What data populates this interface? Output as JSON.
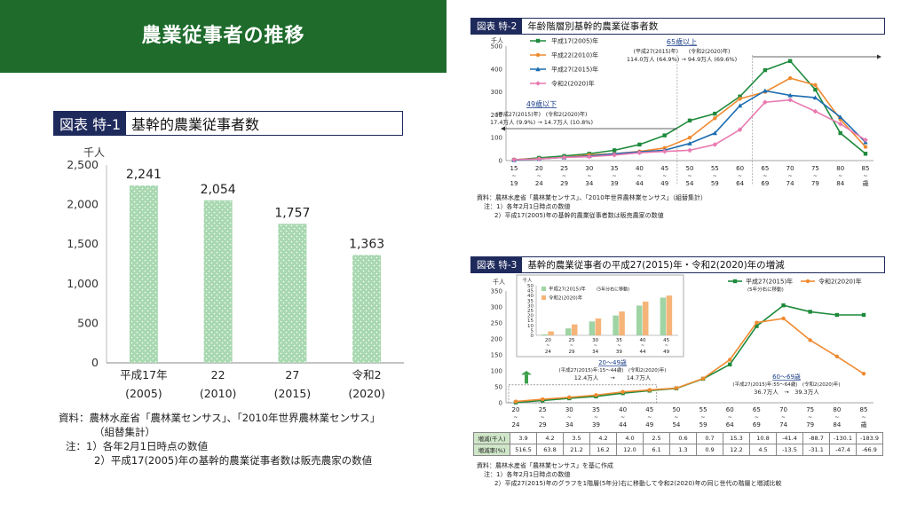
{
  "page_title": "農業従事者の推移",
  "fig1": {
    "tag": "図表 特-1",
    "title": "基幹的農業従事者数",
    "unit": "千人",
    "source_lines": [
      "資料：農林水産省「農林業センサス」、「2010年世界農林業センサス」",
      "（組替集計）",
      "注：1）各年2月1日時点の数値",
      "2）平成17(2005)年の基幹的農業従事者数は販売農家の数値"
    ]
  },
  "fig2": {
    "tag": "図表 特-2",
    "title": "年齢階層別基幹的農業従事者数",
    "unit": "千人",
    "ann_over65_title": "65歳以上",
    "ann_over65_labels": "(平成27(2015)年)　　(令和2(2020)年)",
    "ann_over65_values": "114.0万人 (64.9%) → 94.9万人 (69.6%)",
    "ann_under49_title": "49歳以下",
    "ann_under49_labels": "(平成27(2015)年)　(令和2(2020)年)",
    "ann_under49_values": "17.4万人 (9.9%) → 14.7万人 (10.8%)",
    "source_lines": [
      "資料：農林水産省「農林業センサス」、「2010年世界農林業センサス」（組替集計）",
      "注：1）各年2月1日時点の数値",
      "2）平成17(2005)年の基幹的農業従事者数は販売農家の数値"
    ]
  },
  "fig3": {
    "tag": "図表 特-3",
    "title": "基幹的農業従事者の平成27(2015)年・令和2(2020)年の増減",
    "unit": "千人",
    "inset_unit": "千人",
    "ann_2049_title": "20～49歳",
    "ann_2049_labels": "(平成27(2015)年:15～44歳)　(令和2(2020)年)",
    "ann_2049_values": "12.4万人　　→　　14.7万人",
    "ann_6069_title": "60～69歳",
    "ann_6069_labels": "(平成27(2015)年:55～64歳)　(令和2(2020)年)",
    "ann_6069_values": "36.7万人　→　39.3万人",
    "table_row_labels": [
      "増減(千人)",
      "増減率(%)"
    ],
    "table_change": [
      "3.9",
      "4.2",
      "3.5",
      "4.2",
      "4.0",
      "2.5",
      "0.6",
      "0.7",
      "15.3",
      "10.8",
      "-41.4",
      "-88.7",
      "-130.1",
      "-183.9"
    ],
    "table_rate": [
      "516.5",
      "63.8",
      "21.2",
      "16.2",
      "12.0",
      "6.1",
      "1.3",
      "0.9",
      "12.2",
      "4.5",
      "-13.5",
      "-31.1",
      "-47.4",
      "-66.9"
    ],
    "source_lines": [
      "資料：農林水産省「農林業センサス」を基に作成",
      "注：1）各年2月1日時点の数値",
      "2）平成27(2015)年のグラフを1階層(5年分)右に移動して令和2(2020)年の同じ世代の階層と増減比較"
    ]
  },
  "chart_data": [
    {
      "id": "fig1",
      "type": "bar",
      "categories": [
        "平成17年",
        "22",
        "27",
        "令和2"
      ],
      "categories_sub": [
        "(2005)",
        "(2010)",
        "(2015)",
        "(2020)"
      ],
      "values": [
        2241,
        2054,
        1757,
        1363
      ],
      "value_labels": [
        "2,241",
        "2,054",
        "1,757",
        "1,363"
      ],
      "ylabel": "千人",
      "ylim": [
        0,
        2500
      ],
      "yticks": [
        0,
        500,
        1000,
        1500,
        2000,
        2500
      ],
      "ytick_labels": [
        "0",
        "500",
        "1,000",
        "1,500",
        "2,000",
        "2,500"
      ],
      "bar_color": "#a8d8b0"
    },
    {
      "id": "fig2",
      "type": "line",
      "x_top": [
        "15",
        "20",
        "25",
        "30",
        "35",
        "40",
        "45",
        "50",
        "55",
        "60",
        "65",
        "70",
        "75",
        "80",
        "85"
      ],
      "x_bottom": [
        "19",
        "24",
        "29",
        "34",
        "39",
        "44",
        "49",
        "54",
        "59",
        "64",
        "69",
        "74",
        "79",
        "84",
        "歳"
      ],
      "ylabel": "千人",
      "ylim": [
        0,
        500
      ],
      "yticks": [
        0,
        50,
        100,
        150,
        200,
        250,
        300,
        350,
        400,
        450,
        500
      ],
      "series": [
        {
          "name": "平成17(2005)年",
          "color": "#1e8a3c",
          "marker": "square",
          "values": [
            3,
            12,
            20,
            30,
            45,
            70,
            110,
            175,
            205,
            280,
            395,
            435,
            310,
            120,
            30
          ]
        },
        {
          "name": "平成22(2010)年",
          "color": "#f08a30",
          "marker": "circle",
          "values": [
            4,
            8,
            14,
            25,
            30,
            40,
            55,
            100,
            185,
            270,
            300,
            360,
            330,
            180,
            60
          ]
        },
        {
          "name": "平成27(2015)年",
          "color": "#1c6cb0",
          "marker": "triangle",
          "values": [
            2,
            7,
            14,
            20,
            30,
            38,
            45,
            75,
            120,
            240,
            305,
            285,
            275,
            190,
            80
          ]
        },
        {
          "name": "令和2(2020)年",
          "color": "#e87ab0",
          "marker": "diamond",
          "values": [
            4,
            7,
            14,
            17,
            24,
            34,
            40,
            45,
            70,
            135,
            255,
            265,
            215,
            160,
            90
          ]
        }
      ]
    },
    {
      "id": "fig3",
      "type": "line",
      "x_top": [
        "20",
        "25",
        "30",
        "35",
        "40",
        "45",
        "50",
        "55",
        "60",
        "65",
        "70",
        "75",
        "80",
        "85"
      ],
      "x_bottom": [
        "24",
        "29",
        "34",
        "39",
        "44",
        "49",
        "54",
        "59",
        "64",
        "69",
        "74",
        "79",
        "84",
        "歳"
      ],
      "ylabel": "千人",
      "ylim": [
        0,
        350
      ],
      "yticks": [
        0,
        50,
        100,
        150,
        200,
        250,
        300,
        350
      ],
      "series": [
        {
          "name": "平成27(2015)年",
          "name_sub": "(5年分右に移動)",
          "color": "#1e8a3c",
          "marker": "square",
          "values": [
            1,
            7,
            14,
            20,
            30,
            38,
            45,
            75,
            120,
            240,
            305,
            285,
            275,
            275
          ]
        },
        {
          "name": "令和2(2020)年",
          "color": "#f08a30",
          "marker": "circle",
          "values": [
            4,
            11,
            17,
            24,
            34,
            40,
            46,
            76,
            135,
            251,
            264,
            196,
            145,
            91
          ]
        }
      ]
    },
    {
      "id": "fig3-inset",
      "type": "bar",
      "x_top": [
        "20",
        "25",
        "30",
        "35",
        "40",
        "45"
      ],
      "x_bottom": [
        "24",
        "29",
        "34",
        "39",
        "44",
        "49"
      ],
      "ylim": [
        0,
        50
      ],
      "yticks": [
        0,
        5,
        10,
        15,
        20,
        25,
        30,
        35,
        40,
        45,
        50
      ],
      "series": [
        {
          "name": "平成27(2015)年",
          "name_sub": "(5年分右に移動)",
          "color": "#9fd4a4",
          "values": [
            1,
            7,
            14,
            20,
            30,
            38
          ]
        },
        {
          "name": "令和2(2020)年",
          "color": "#f5b478",
          "values": [
            4,
            11,
            17,
            24,
            34,
            40
          ]
        }
      ]
    }
  ]
}
